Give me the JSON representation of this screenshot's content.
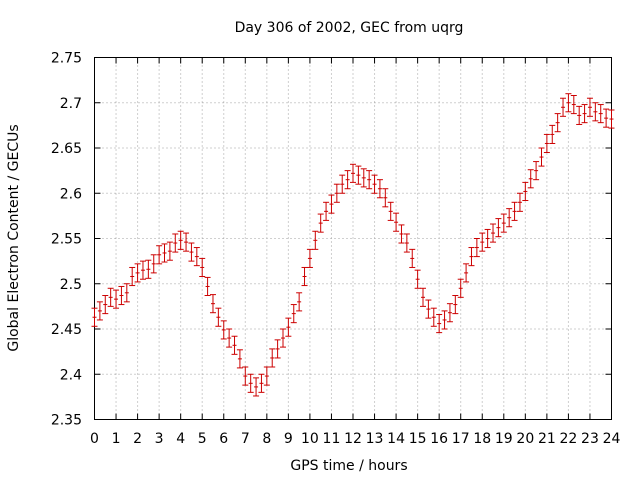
{
  "chart_data": {
    "type": "scatter",
    "title": "Day 306 of 2002, GEC from uqrg",
    "xlabel": "GPS time / hours",
    "ylabel": "Global Electron Content / GECUs",
    "xlim": [
      0,
      24
    ],
    "ylim": [
      2.35,
      2.75
    ],
    "x_ticks": [
      "0",
      "1",
      "2",
      "3",
      "4",
      "5",
      "6",
      "7",
      "8",
      "9",
      "10",
      "11",
      "12",
      "13",
      "14",
      "15",
      "16",
      "17",
      "18",
      "19",
      "20",
      "21",
      "22",
      "23",
      "24"
    ],
    "y_ticks": [
      "2.35",
      "2.4",
      "2.45",
      "2.5",
      "2.55",
      "2.6",
      "2.65",
      "2.7",
      "2.75"
    ],
    "grid": true,
    "error_bars": true,
    "color": "#cc0000",
    "series": [
      {
        "x": [
          0.0,
          0.25,
          0.5,
          0.75,
          1.0,
          1.25,
          1.5,
          1.75,
          2.0,
          2.25,
          2.5,
          2.75,
          3.0,
          3.25,
          3.5,
          3.75,
          4.0,
          4.25,
          4.5,
          4.75,
          5.0,
          5.25,
          5.5,
          5.75,
          6.0,
          6.25,
          6.5,
          6.75,
          7.0,
          7.25,
          7.5,
          7.75,
          8.0,
          8.25,
          8.5,
          8.75,
          9.0,
          9.25,
          9.5,
          9.75,
          10.0,
          10.25,
          10.5,
          10.75,
          11.0,
          11.25,
          11.5,
          11.75,
          12.0,
          12.25,
          12.5,
          12.75,
          13.0,
          13.25,
          13.5,
          13.75,
          14.0,
          14.25,
          14.5,
          14.75,
          15.0,
          15.25,
          15.5,
          15.75,
          16.0,
          16.25,
          16.5,
          16.75,
          17.0,
          17.25,
          17.5,
          17.75,
          18.0,
          18.25,
          18.5,
          18.75,
          19.0,
          19.25,
          19.5,
          19.75,
          20.0,
          20.25,
          20.5,
          20.75,
          21.0,
          21.25,
          21.5,
          21.75,
          22.0,
          22.25,
          22.5,
          22.75,
          23.0,
          23.25,
          23.5,
          23.75,
          24.0
        ],
        "y": [
          2.463,
          2.47,
          2.477,
          2.485,
          2.483,
          2.487,
          2.49,
          2.508,
          2.512,
          2.515,
          2.516,
          2.522,
          2.532,
          2.534,
          2.536,
          2.545,
          2.548,
          2.546,
          2.535,
          2.53,
          2.518,
          2.497,
          2.478,
          2.463,
          2.449,
          2.44,
          2.432,
          2.417,
          2.398,
          2.39,
          2.386,
          2.39,
          2.398,
          2.418,
          2.428,
          2.44,
          2.452,
          2.467,
          2.48,
          2.508,
          2.528,
          2.548,
          2.567,
          2.58,
          2.588,
          2.6,
          2.61,
          2.615,
          2.622,
          2.62,
          2.617,
          2.615,
          2.61,
          2.605,
          2.595,
          2.58,
          2.568,
          2.555,
          2.545,
          2.528,
          2.505,
          2.485,
          2.472,
          2.463,
          2.456,
          2.46,
          2.468,
          2.477,
          2.495,
          2.512,
          2.53,
          2.54,
          2.546,
          2.55,
          2.556,
          2.562,
          2.567,
          2.573,
          2.58,
          2.59,
          2.602,
          2.616,
          2.625,
          2.64,
          2.655,
          2.665,
          2.678,
          2.695,
          2.7,
          2.698,
          2.686,
          2.688,
          2.695,
          2.69,
          2.688,
          2.683,
          2.682
        ],
        "error": [
          0.01,
          0.01,
          0.01,
          0.01,
          0.01,
          0.01,
          0.01,
          0.01,
          0.01,
          0.01,
          0.01,
          0.01,
          0.01,
          0.01,
          0.01,
          0.01,
          0.01,
          0.01,
          0.01,
          0.01,
          0.01,
          0.01,
          0.01,
          0.01,
          0.01,
          0.01,
          0.01,
          0.01,
          0.01,
          0.01,
          0.01,
          0.01,
          0.01,
          0.01,
          0.01,
          0.01,
          0.01,
          0.01,
          0.01,
          0.01,
          0.01,
          0.01,
          0.01,
          0.01,
          0.01,
          0.01,
          0.01,
          0.01,
          0.01,
          0.01,
          0.01,
          0.01,
          0.01,
          0.01,
          0.01,
          0.01,
          0.01,
          0.01,
          0.01,
          0.01,
          0.01,
          0.01,
          0.01,
          0.01,
          0.01,
          0.01,
          0.01,
          0.01,
          0.01,
          0.01,
          0.01,
          0.01,
          0.01,
          0.01,
          0.01,
          0.01,
          0.01,
          0.01,
          0.01,
          0.01,
          0.01,
          0.01,
          0.01,
          0.01,
          0.01,
          0.01,
          0.01,
          0.01,
          0.01,
          0.01,
          0.01,
          0.01,
          0.01,
          0.01,
          0.01,
          0.01,
          0.01
        ]
      }
    ]
  }
}
